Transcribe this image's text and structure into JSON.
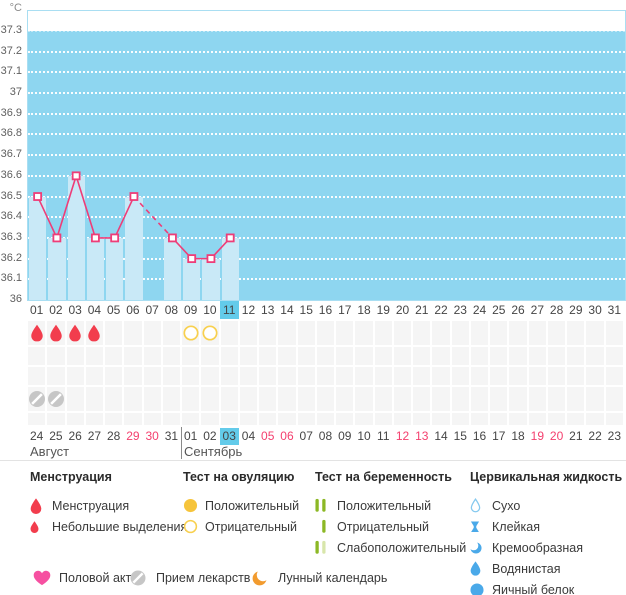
{
  "chart": {
    "unit_label": "°C",
    "plot_bg": "#8ed6f0",
    "bar_color": "#c9e9f7",
    "line_color": "#ee3d78",
    "y_ticks": [
      "37.3",
      "37.2",
      "37.1",
      "37",
      "36.9",
      "36.8",
      "36.7",
      "36.6",
      "36.5",
      "36.4",
      "36.3",
      "36.2",
      "36.1",
      "36"
    ]
  },
  "chart_data": {
    "type": "line",
    "categories": [
      "01",
      "02",
      "03",
      "04",
      "05",
      "06",
      "07",
      "08",
      "09",
      "10",
      "11",
      "12",
      "13",
      "14",
      "15",
      "16",
      "17",
      "18",
      "19",
      "20",
      "21",
      "22",
      "23",
      "24",
      "25",
      "26",
      "27",
      "28",
      "29",
      "30",
      "31"
    ],
    "series": [
      {
        "name": "basal_temperature_c",
        "points": [
          {
            "x": "01",
            "y": 36.5
          },
          {
            "x": "02",
            "y": 36.3
          },
          {
            "x": "03",
            "y": 36.6
          },
          {
            "x": "04",
            "y": 36.3
          },
          {
            "x": "05",
            "y": 36.3
          },
          {
            "x": "06",
            "y": 36.5
          },
          {
            "x": "08",
            "y": 36.3
          },
          {
            "x": "09",
            "y": 36.2
          },
          {
            "x": "10",
            "y": 36.2
          },
          {
            "x": "11",
            "y": 36.3
          }
        ]
      }
    ],
    "ylabel": "°C",
    "ylim": [
      36.0,
      37.3
    ],
    "y_step": 0.1,
    "grid": true,
    "missing_days": [
      "07"
    ],
    "selected_day": "11",
    "legend_position": "bottom"
  },
  "calendar": {
    "cycle_days": [
      "01",
      "02",
      "03",
      "04",
      "05",
      "06",
      "07",
      "08",
      "09",
      "10",
      "11",
      "12",
      "13",
      "14",
      "15",
      "16",
      "17",
      "18",
      "19",
      "20",
      "21",
      "22",
      "23",
      "24",
      "25",
      "26",
      "27",
      "28",
      "29",
      "30",
      "31"
    ],
    "selected_cycle_day": "11",
    "dates": [
      {
        "label": "24"
      },
      {
        "label": "25"
      },
      {
        "label": "26"
      },
      {
        "label": "27"
      },
      {
        "label": "28"
      },
      {
        "label": "29",
        "weekend": true
      },
      {
        "label": "30",
        "weekend": true
      },
      {
        "label": "31"
      },
      {
        "label": "01"
      },
      {
        "label": "02"
      },
      {
        "label": "03",
        "selected": true
      },
      {
        "label": "04"
      },
      {
        "label": "05",
        "weekend": true
      },
      {
        "label": "06",
        "weekend": true
      },
      {
        "label": "07"
      },
      {
        "label": "08"
      },
      {
        "label": "09"
      },
      {
        "label": "10"
      },
      {
        "label": "11"
      },
      {
        "label": "12",
        "weekend": true
      },
      {
        "label": "13",
        "weekend": true
      },
      {
        "label": "14"
      },
      {
        "label": "15"
      },
      {
        "label": "16"
      },
      {
        "label": "17"
      },
      {
        "label": "18"
      },
      {
        "label": "19",
        "weekend": true
      },
      {
        "label": "20",
        "weekend": true
      },
      {
        "label": "21"
      },
      {
        "label": "22"
      },
      {
        "label": "23"
      }
    ],
    "months": [
      {
        "name": "Август",
        "start_col": 0
      },
      {
        "name": "Сентябрь",
        "start_col": 8
      }
    ]
  },
  "marks": {
    "items": [
      {
        "row": 0,
        "cols": [
          0,
          1,
          2,
          3
        ],
        "icon": "drop-red",
        "meaning": "Менструация"
      },
      {
        "row": 0,
        "cols": [
          8,
          9
        ],
        "icon": "circle-yellow-outline",
        "meaning": "Отрицательный тест на овуляцию"
      },
      {
        "row": 3,
        "cols": [
          0,
          1
        ],
        "icon": "pill-gray",
        "meaning": "Прием лекарств"
      }
    ]
  },
  "legend": {
    "sections": [
      {
        "title": "Менструация",
        "items": [
          {
            "icon": "drop-red",
            "label": "Менструация"
          },
          {
            "icon": "drop-red-small",
            "label": "Небольшие выделения"
          }
        ]
      },
      {
        "title": "Тест на овуляцию",
        "items": [
          {
            "icon": "circle-yellow-filled",
            "label": "Положительный"
          },
          {
            "icon": "circle-yellow-outline",
            "label": "Отрицательный"
          }
        ]
      },
      {
        "title": "Тест на беременность",
        "items": [
          {
            "icon": "preg-positive",
            "label": "Положительный"
          },
          {
            "icon": "preg-negative",
            "label": "Отрицательный"
          },
          {
            "icon": "preg-weak",
            "label": "Слабоположительный"
          }
        ]
      },
      {
        "title": "Цервикальная жидкость",
        "items": [
          {
            "icon": "fluid-dry",
            "label": "Сухо"
          },
          {
            "icon": "fluid-sticky",
            "label": "Клейкая"
          },
          {
            "icon": "fluid-creamy",
            "label": "Кремообразная"
          },
          {
            "icon": "fluid-watery",
            "label": "Водянистая"
          },
          {
            "icon": "fluid-eggwhite",
            "label": "Яичный белок"
          }
        ]
      }
    ],
    "footer": [
      {
        "icon": "heart-pink",
        "label": "Половой акт"
      },
      {
        "icon": "pill-gray",
        "label": "Прием лекарств"
      },
      {
        "icon": "moon-orange",
        "label": "Лунный календарь"
      }
    ]
  },
  "colors": {
    "plot_bg": "#8ed6f0",
    "bar": "#c9e9f7",
    "line_pink": "#ee3d78",
    "selected_bg": "#63cbea",
    "weekend_text": "#f43f6e",
    "drop_red": "#f23d4d",
    "yellow": "#f6c43b",
    "yellow_outline": "#f8d04e",
    "green": "#8cb825",
    "green_light": "#d8e6ab",
    "fluid_blue": "#4aa9e9",
    "fluid_blue_light": "#85c9ef",
    "heart_pink": "#f650a1",
    "moon_orange": "#f29b2e",
    "pill_gray": "#c6c6c6"
  }
}
